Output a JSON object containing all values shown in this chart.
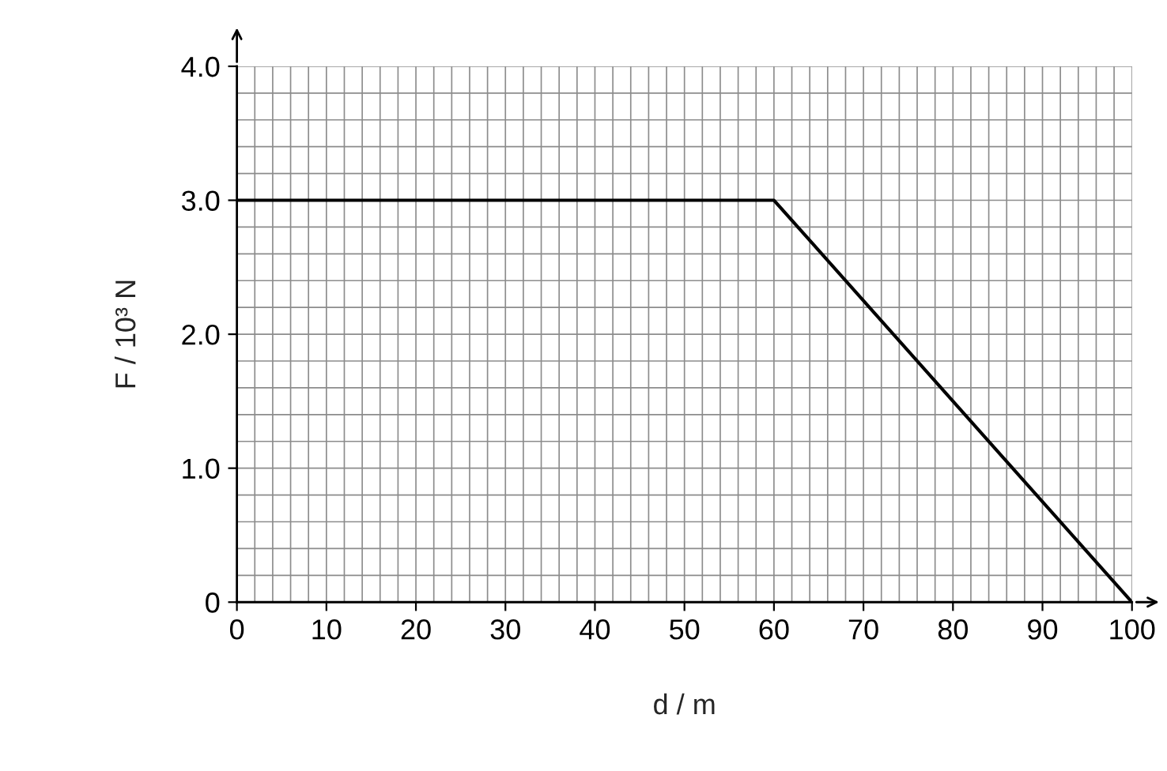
{
  "chart_data": {
    "type": "line",
    "xlabel": "d / m",
    "ylabel": "F / 10³ N",
    "x": [
      0,
      60,
      100
    ],
    "series": [
      {
        "color": "#000000",
        "values": [
          3.0,
          3.0,
          0
        ]
      }
    ],
    "xlim": [
      0,
      100
    ],
    "xticks": [
      0,
      10,
      20,
      30,
      40,
      50,
      60,
      70,
      80,
      90,
      100
    ],
    "ylim": [
      0,
      4.0
    ],
    "yticks": [
      0,
      {
        "value": 1.0,
        "label": "1.0"
      },
      {
        "value": 2.0,
        "label": "2.0"
      },
      {
        "value": 3.0,
        "label": "3.0"
      },
      {
        "value": 4.0,
        "label": "4.0"
      }
    ],
    "grid": true,
    "legend": false
  }
}
